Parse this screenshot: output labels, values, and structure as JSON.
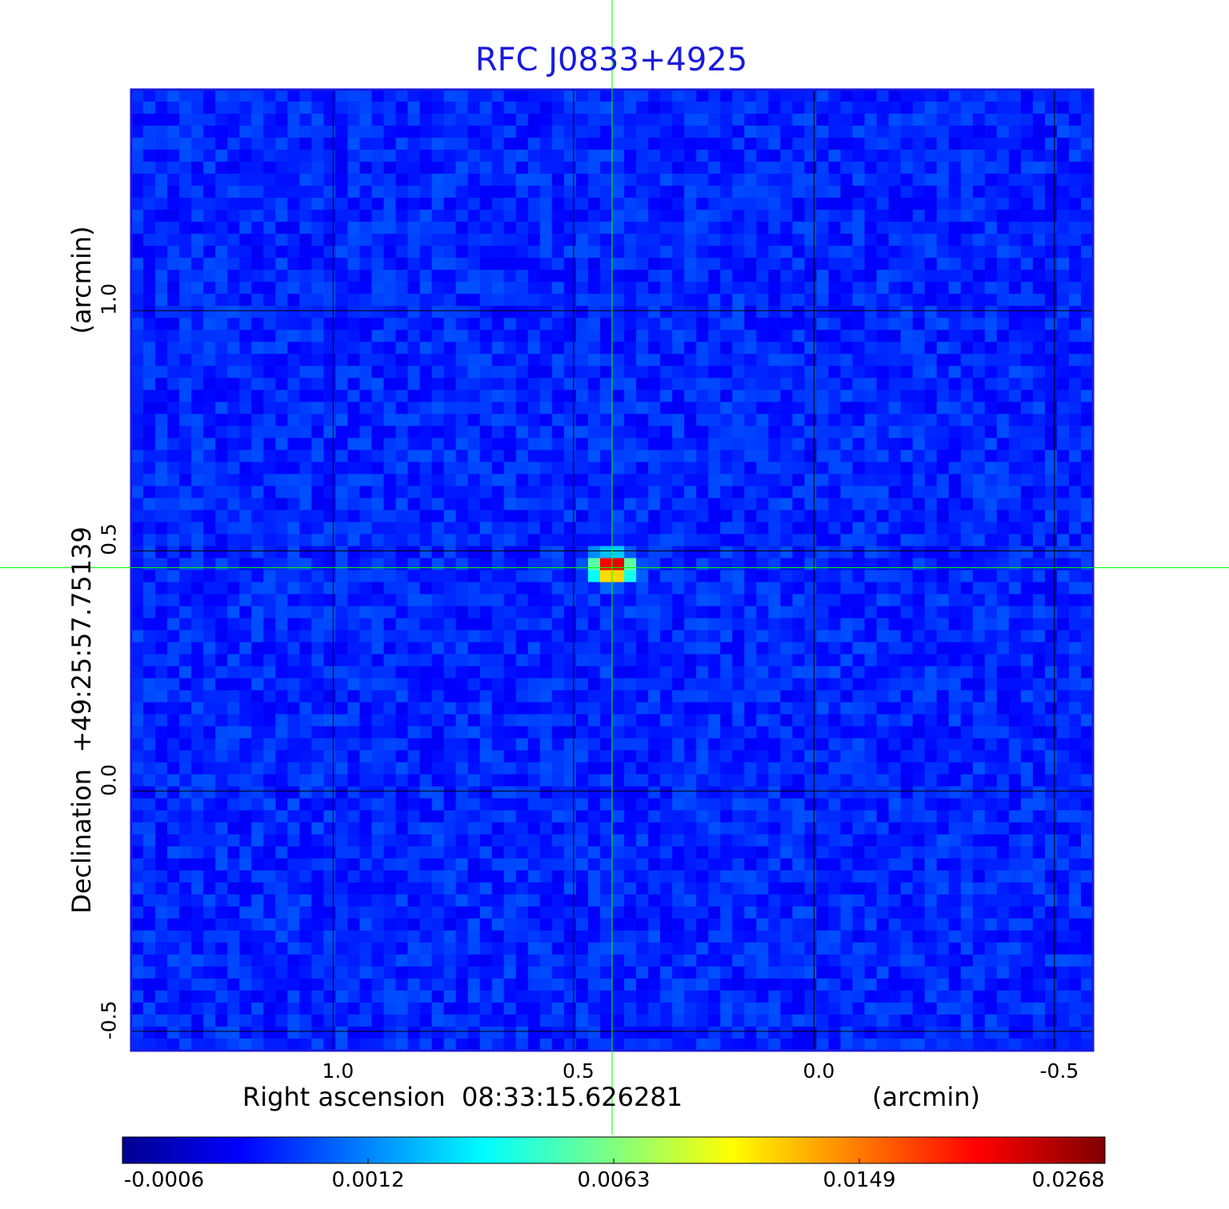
{
  "chart_data": {
    "type": "heatmap",
    "title": "RFC J0833+4925",
    "xlabel": "Right ascension  08:33:15.626281",
    "xunit": "(arcmin)",
    "ylabel": "Declination  +49:25:57.75139",
    "yunit": "(arcmin)",
    "x_ticks": [
      "1.0",
      "0.5",
      "0.0",
      "-0.5"
    ],
    "x_tick_values": [
      1.0,
      0.5,
      0.0,
      -0.5
    ],
    "y_ticks": [
      "1.0",
      "0.5",
      "0.0",
      "-0.5"
    ],
    "y_tick_values": [
      1.0,
      0.5,
      0.0,
      -0.5
    ],
    "xlim": [
      1.42,
      -0.58
    ],
    "ylim": [
      -0.54,
      1.46
    ],
    "grid": true,
    "crosshair": {
      "x": 0.42,
      "y": 0.465,
      "color": "#00ff00"
    },
    "source_peak": {
      "x": 0.42,
      "y": 0.465,
      "value": 0.0268
    },
    "background_level": 0.0003,
    "colormap": "jet",
    "colorbar": {
      "labels": [
        "-0.0006",
        "0.0012",
        "0.0063",
        "0.0149",
        "0.0268"
      ],
      "values": [
        -0.0006,
        0.0012,
        0.0063,
        0.0149,
        0.0268
      ],
      "placement": "bottom"
    },
    "colors": {
      "title": "#1a1adf",
      "frame": "#1a1adf",
      "grid": "#000000",
      "crosshair": "#00ff00"
    }
  }
}
